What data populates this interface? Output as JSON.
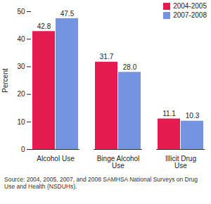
{
  "chart_data": {
    "type": "bar",
    "categories": [
      "Alcohol Use",
      "Binge Alcohol Use",
      "Illicit Drug Use"
    ],
    "series": [
      {
        "name": "2004-2005",
        "color": "#e31b4f",
        "values": [
          42.8,
          31.7,
          11.1
        ],
        "value_labels": [
          "42.8",
          "31.7",
          "11.1"
        ]
      },
      {
        "name": "2007-2008",
        "color": "#7494e2",
        "values": [
          47.5,
          28.0,
          10.3
        ],
        "value_labels": [
          "47.5",
          "28.0",
          "10.3"
        ]
      }
    ],
    "y_label": "Percent",
    "ylim": [
      0,
      50
    ],
    "yticks": [
      0,
      10,
      20,
      30,
      40,
      50
    ],
    "grid": false,
    "legend": "top-right",
    "data_labels": true,
    "caption": "Source: 2004, 2005, 2007, and 2008 SAMHSA National Surveys on Drug Use and Health (NSDUHs)."
  }
}
